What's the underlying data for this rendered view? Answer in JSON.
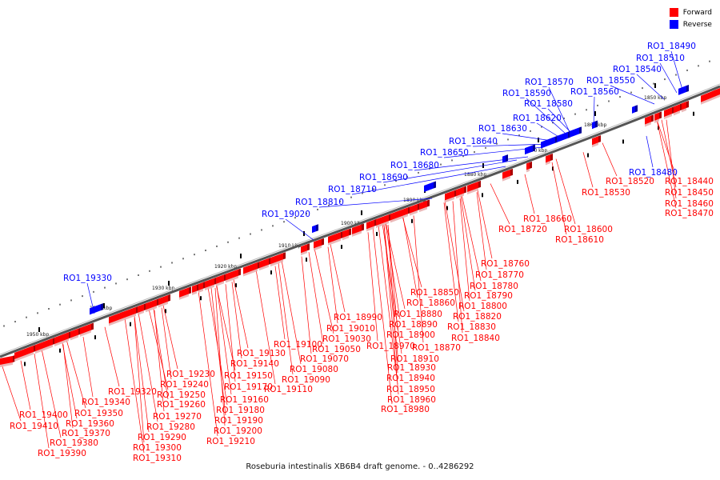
{
  "caption": "Roseburia intestinalis XB6B4 draft genome. - 0..4286292",
  "legend": [
    {
      "label": "Forward",
      "color": "#ff0000"
    },
    {
      "label": "Reverse",
      "color": "#0000ff"
    }
  ],
  "ticks": [
    "1850 kbp",
    "1860 kbp",
    "1870 kbp",
    "1880 kbp",
    "1890 kbp",
    "1900 kbp",
    "1910 kbp",
    "1920 kbp",
    "1930 kbp",
    "1940 kbp",
    "1950 kbp"
  ],
  "forward_labels": [
    "RO1_18440",
    "RO1_18450",
    "RO1_18460",
    "RO1_18470",
    "RO1_18520",
    "RO1_18530",
    "RO1_18600",
    "RO1_18610",
    "RO1_18660",
    "RO1_18720",
    "RO1_18760",
    "RO1_18770",
    "RO1_18780",
    "RO1_18790",
    "RO1_18800",
    "RO1_18820",
    "RO1_18830",
    "RO1_18840",
    "RO1_18850",
    "RO1_18860",
    "RO1_18870",
    "RO1_18880",
    "RO1_18890",
    "RO1_18900",
    "RO1_18910",
    "RO1_18930",
    "RO1_18940",
    "RO1_18950",
    "RO1_18960",
    "RO1_18970",
    "RO1_18980",
    "RO1_18990",
    "RO1_19010",
    "RO1_19030",
    "RO1_19050",
    "RO1_19070",
    "RO1_19080",
    "RO1_19090",
    "RO1_19100",
    "RO1_19110",
    "RO1_19130",
    "RO1_19140",
    "RO1_19150",
    "RO1_19160",
    "RO1_19170",
    "RO1_19180",
    "RO1_19190",
    "RO1_19200",
    "RO1_19210",
    "RO1_19230",
    "RO1_19240",
    "RO1_19250",
    "RO1_19260",
    "RO1_19270",
    "RO1_19280",
    "RO1_19290",
    "RO1_19300",
    "RO1_19310",
    "RO1_19320",
    "RO1_19340",
    "RO1_19350",
    "RO1_19360",
    "RO1_19370",
    "RO1_19380",
    "RO1_19390",
    "RO1_19400",
    "RO1_19410"
  ],
  "reverse_labels": [
    "RO1_18480",
    "RO1_18490",
    "RO1_18510",
    "RO1_18540",
    "RO1_18550",
    "RO1_18560",
    "RO1_18570",
    "RO1_18580",
    "RO1_18590",
    "RO1_18620",
    "RO1_18630",
    "RO1_18640",
    "RO1_18650",
    "RO1_18680",
    "RO1_18690",
    "RO1_18710",
    "RO1_18810",
    "RO1_19020",
    "RO1_19330"
  ]
}
